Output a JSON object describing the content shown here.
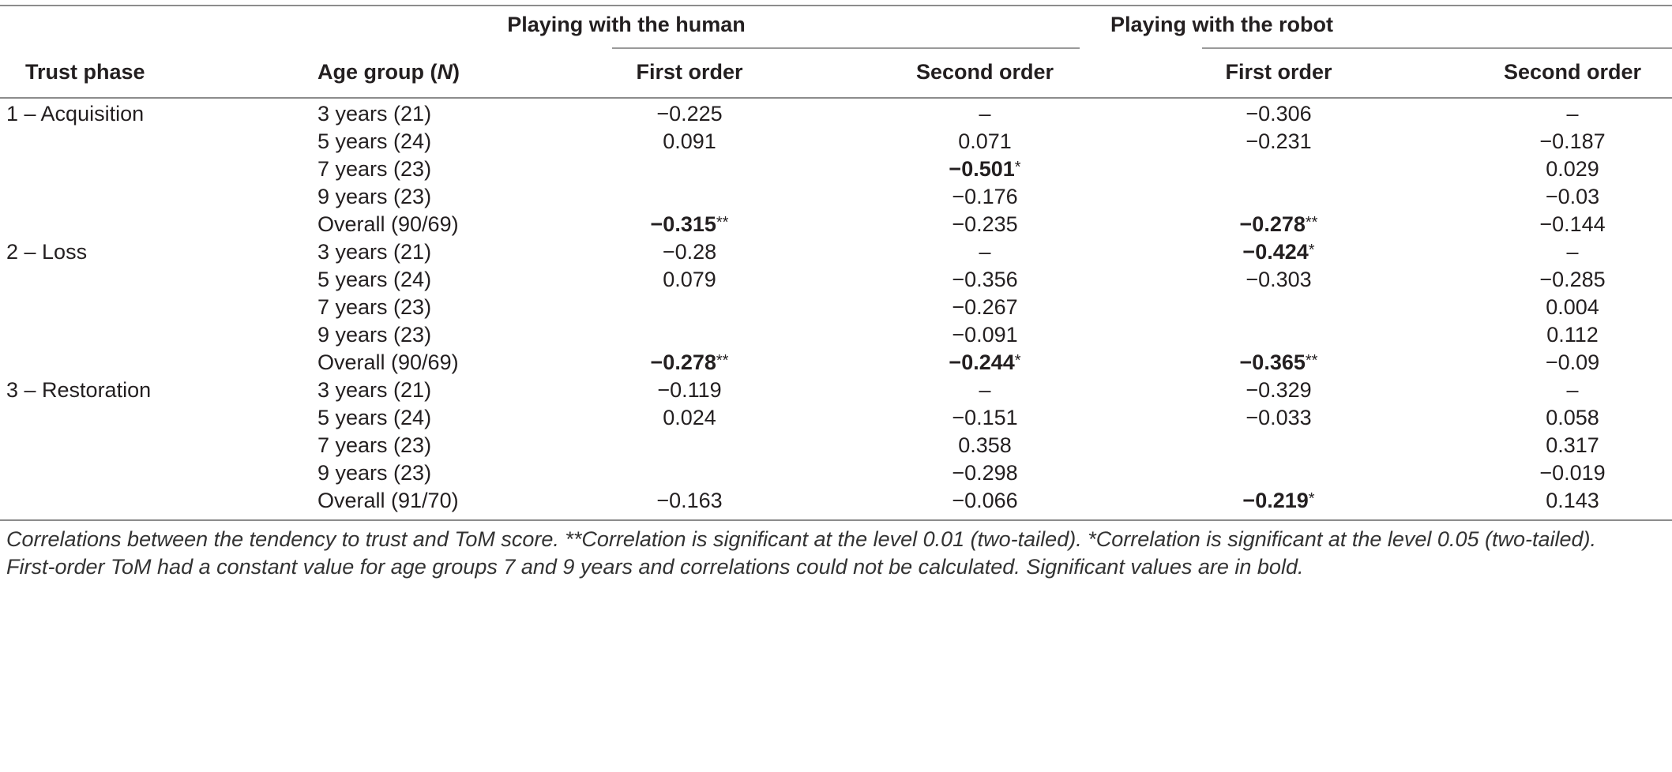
{
  "groups": {
    "human": "Playing with the human",
    "robot": "Playing with the robot"
  },
  "columns": {
    "trust_phase": "Trust phase",
    "age_group": "Age group",
    "age_group_n": "N",
    "human_first": "First order",
    "human_second": "Second order",
    "robot_first": "First order",
    "robot_second": "Second order"
  },
  "rows": [
    {
      "phase": "1 – Acquisition",
      "age": "3 years (21)",
      "h1": "−0.225",
      "h2": "–",
      "r1": "−0.306",
      "r2": "–"
    },
    {
      "phase": "",
      "age": "5 years (24)",
      "h1": "0.091",
      "h2": "0.071",
      "r1": "−0.231",
      "r2": "−0.187"
    },
    {
      "phase": "",
      "age": "7 years (23)",
      "h1": "",
      "h2": "−0.501",
      "h2_sig": "*",
      "r1": "",
      "r2": "0.029"
    },
    {
      "phase": "",
      "age": "9 years (23)",
      "h1": "",
      "h2": "−0.176",
      "r1": "",
      "r2": "−0.03"
    },
    {
      "phase": "",
      "age": "Overall (90/69)",
      "h1": "−0.315",
      "h1_sig": "**",
      "h2": "−0.235",
      "r1": "−0.278",
      "r1_sig": "**",
      "r2": "−0.144"
    },
    {
      "phase": "2 – Loss",
      "age": "3 years (21)",
      "h1": "−0.28",
      "h2": "–",
      "r1": "−0.424",
      "r1_sig": "*",
      "r2": "–"
    },
    {
      "phase": "",
      "age": "5 years (24)",
      "h1": "0.079",
      "h2": "−0.356",
      "r1": "−0.303",
      "r2": "−0.285"
    },
    {
      "phase": "",
      "age": "7 years (23)",
      "h1": "",
      "h2": "−0.267",
      "r1": "",
      "r2": "0.004"
    },
    {
      "phase": "",
      "age": "9 years (23)",
      "h1": "",
      "h2": "−0.091",
      "r1": "",
      "r2": "0.112"
    },
    {
      "phase": "",
      "age": "Overall (90/69)",
      "h1": "−0.278",
      "h1_sig": "**",
      "h2": "−0.244",
      "h2_sig": "*",
      "r1": "−0.365",
      "r1_sig": "**",
      "r2": "−0.09"
    },
    {
      "phase": "3 – Restoration",
      "age": "3 years (21)",
      "h1": "−0.119",
      "h2": "–",
      "r1": "−0.329",
      "r2": "–"
    },
    {
      "phase": "",
      "age": "5 years (24)",
      "h1": "0.024",
      "h2": "−0.151",
      "r1": "−0.033",
      "r2": "0.058"
    },
    {
      "phase": "",
      "age": "7 years (23)",
      "h1": "",
      "h2": "0.358",
      "r1": "",
      "r2": "0.317"
    },
    {
      "phase": "",
      "age": "9 years (23)",
      "h1": "",
      "h2": "−0.298",
      "r1": "",
      "r2": "−0.019"
    },
    {
      "phase": "",
      "age": "Overall (91/70)",
      "h1": "−0.163",
      "h2": "−0.066",
      "r1": "−0.219",
      "r1_sig": "*",
      "r2": "0.143"
    }
  ],
  "footnote": {
    "line1": "Correlations between the tendency to trust and ToM score. **Correlation is significant at the level 0.01 (two-tailed). *Correlation is significant at the level 0.05 (two-tailed).",
    "line2": "First-order ToM had a constant value for age groups 7 and 9 years and correlations could not be calculated. Significant values are in bold."
  }
}
